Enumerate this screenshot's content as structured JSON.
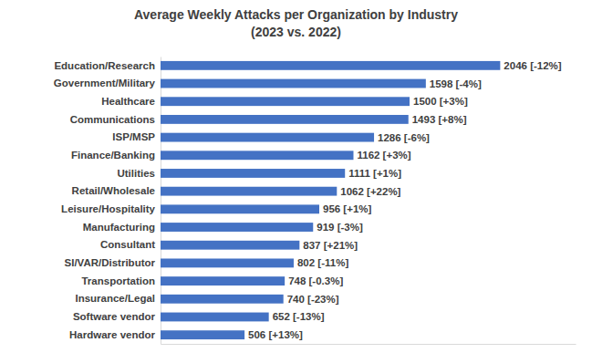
{
  "chart_data": {
    "type": "bar",
    "orientation": "horizontal",
    "title": "Average Weekly Attacks per Organization by Industry",
    "subtitle": "(2023 vs. 2022)",
    "categories": [
      "Education/Research",
      "Government/Military",
      "Healthcare",
      "Communications",
      "ISP/MSP",
      "Finance/Banking",
      "Utilities",
      "Retail/Wholesale",
      "Leisure/Hospitality",
      "Manufacturing",
      "Consultant",
      "SI/VAR/Distributor",
      "Transportation",
      "Insurance/Legal",
      "Software vendor",
      "Hardware vendor"
    ],
    "values": [
      2046,
      1598,
      1500,
      1493,
      1286,
      1162,
      1111,
      1062,
      956,
      919,
      837,
      802,
      748,
      740,
      652,
      506
    ],
    "value_labels": [
      "2046 [-12%]",
      "1598 [-4%]",
      "1500 [+3%]",
      "1493 [+8%]",
      "1286 [-6%]",
      "1162 [+3%]",
      "1111 [+1%]",
      "1062 [+22%]",
      "956 [+1%]",
      "919 [-3%]",
      "837 [+21%]",
      "802 [-11%]",
      "748 [-0.3%]",
      "740 [-23%]",
      "652 [-13%]",
      "506 [+13%]"
    ],
    "color": "#4472c4",
    "xlim": [
      0,
      2500
    ],
    "data_labels": true,
    "tick_labels": "y"
  }
}
